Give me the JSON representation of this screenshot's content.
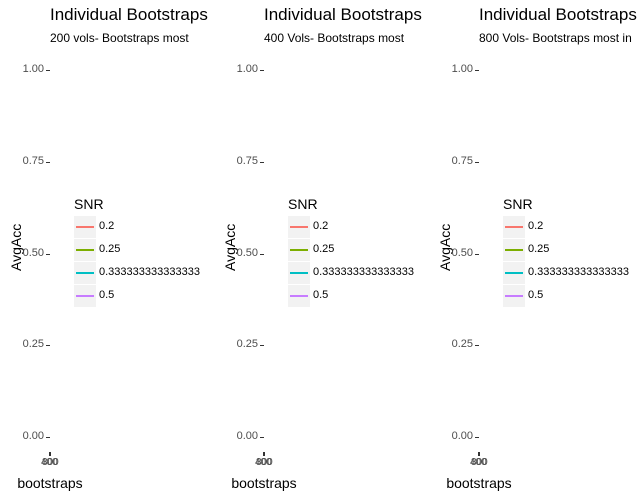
{
  "chart_data": [
    {
      "type": "line",
      "title": "Individual Bootstraps",
      "subtitle": "200 vols- Bootstraps most",
      "xlabel": "bootstraps",
      "ylabel": "AvgAcc",
      "ylim": [
        0,
        1
      ],
      "y_ticks": [
        "0.00",
        "0.25",
        "0.50",
        "0.75",
        "1.00"
      ],
      "x_ticks": [
        "400",
        "800"
      ],
      "legend_title": "SNR",
      "legend_position": "left-center",
      "series": [
        {
          "name": "0.2",
          "color": "#F8766D",
          "values": []
        },
        {
          "name": "0.25",
          "color": "#7CAE00",
          "values": []
        },
        {
          "name": "0.333333333333333",
          "color": "#00BFC4",
          "values": []
        },
        {
          "name": "0.5",
          "color": "#C77CFF",
          "values": []
        }
      ]
    },
    {
      "type": "line",
      "title": "Individual Bootstraps",
      "subtitle": "400 Vols- Bootstraps most",
      "xlabel": "bootstraps",
      "ylabel": "AvgAcc",
      "ylim": [
        0,
        1
      ],
      "y_ticks": [
        "0.00",
        "0.25",
        "0.50",
        "0.75",
        "1.00"
      ],
      "x_ticks": [
        "400",
        "800"
      ],
      "legend_title": "SNR",
      "legend_position": "left-center",
      "series": [
        {
          "name": "0.2",
          "color": "#F8766D",
          "values": []
        },
        {
          "name": "0.25",
          "color": "#7CAE00",
          "values": []
        },
        {
          "name": "0.333333333333333",
          "color": "#00BFC4",
          "values": []
        },
        {
          "name": "0.5",
          "color": "#C77CFF",
          "values": []
        }
      ]
    },
    {
      "type": "line",
      "title": "Individual Bootstraps",
      "subtitle": "800 Vols- Bootstraps most in",
      "xlabel": "bootstraps",
      "ylabel": "AvgAcc",
      "ylim": [
        0,
        1
      ],
      "y_ticks": [
        "0.00",
        "0.25",
        "0.50",
        "0.75",
        "1.00"
      ],
      "x_ticks": [
        "400",
        "800"
      ],
      "legend_title": "SNR",
      "legend_position": "left-center",
      "series": [
        {
          "name": "0.2",
          "color": "#F8766D",
          "values": []
        },
        {
          "name": "0.25",
          "color": "#7CAE00",
          "values": []
        },
        {
          "name": "0.333333333333333",
          "color": "#00BFC4",
          "values": []
        },
        {
          "name": "0.5",
          "color": "#C77CFF",
          "values": []
        }
      ]
    }
  ]
}
